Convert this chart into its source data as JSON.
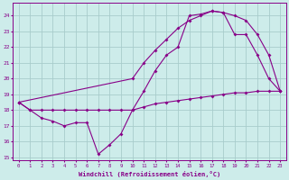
{
  "xlabel": "Windchill (Refroidissement éolien,°C)",
  "bg_color": "#cdecea",
  "line_color": "#880088",
  "grid_color": "#a8cccc",
  "xlim": [
    -0.5,
    23.5
  ],
  "ylim": [
    14.8,
    24.8
  ],
  "yticks": [
    15,
    16,
    17,
    18,
    19,
    20,
    21,
    22,
    23,
    24
  ],
  "xticks": [
    0,
    1,
    2,
    3,
    4,
    5,
    6,
    7,
    8,
    9,
    10,
    11,
    12,
    13,
    14,
    15,
    16,
    17,
    18,
    19,
    20,
    21,
    22,
    23
  ],
  "line1_x": [
    0,
    1,
    2,
    3,
    4,
    5,
    6,
    7,
    8,
    9,
    10,
    11,
    12,
    13,
    14,
    15,
    16,
    17,
    18,
    19,
    20,
    21,
    22,
    23
  ],
  "line1_y": [
    18.5,
    18.0,
    18.0,
    18.0,
    18.0,
    18.0,
    18.0,
    18.0,
    18.0,
    18.0,
    18.0,
    18.2,
    18.4,
    18.5,
    18.6,
    18.7,
    18.8,
    18.9,
    19.0,
    19.1,
    19.1,
    19.2,
    19.2,
    19.2
  ],
  "line2_x": [
    0,
    1,
    2,
    3,
    4,
    5,
    6,
    7,
    8,
    9,
    10,
    11,
    12,
    13,
    14,
    15,
    16,
    17,
    18,
    19,
    20,
    21,
    22,
    23
  ],
  "line2_y": [
    18.5,
    18.0,
    17.5,
    17.3,
    17.0,
    17.2,
    17.2,
    15.2,
    15.8,
    16.5,
    18.0,
    19.2,
    20.5,
    21.5,
    22.0,
    24.0,
    24.1,
    24.3,
    24.2,
    22.8,
    22.8,
    21.5,
    20.0,
    19.2
  ],
  "line3_x": [
    0,
    10,
    11,
    12,
    13,
    14,
    15,
    16,
    17,
    18,
    19,
    20,
    21,
    22,
    23
  ],
  "line3_y": [
    18.5,
    20.0,
    21.0,
    21.8,
    22.5,
    23.2,
    23.7,
    24.0,
    24.3,
    24.2,
    24.0,
    23.7,
    22.8,
    21.5,
    19.2
  ]
}
